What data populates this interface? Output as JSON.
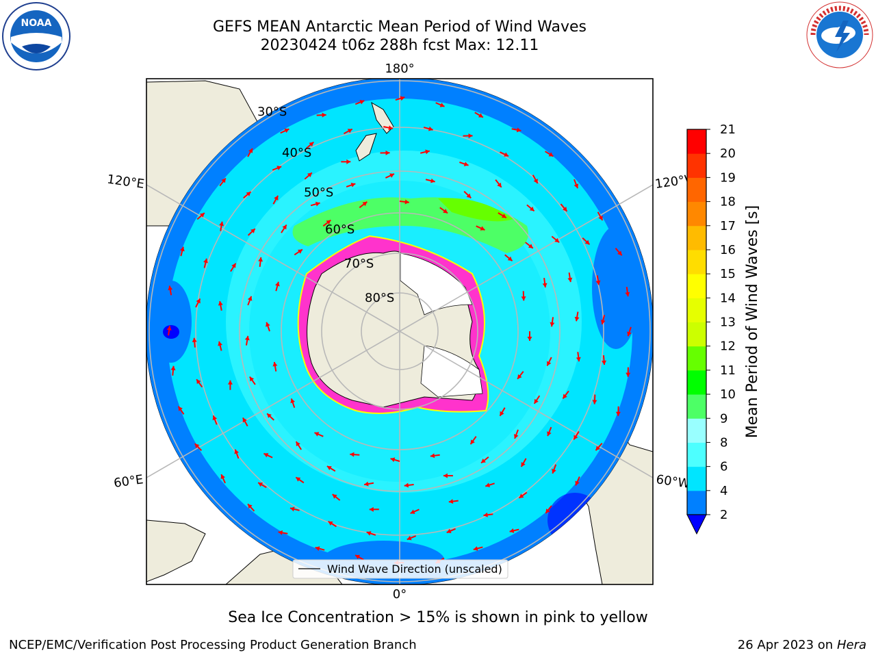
{
  "title": {
    "line1": "GEFS MEAN Antarctic Mean Period of Wind Waves",
    "line2": "20230424 t06z 288h fcst   Max: 12.11"
  },
  "logos": {
    "left": "noaa-logo",
    "right": "nws-logo",
    "left_text": "NOAA",
    "right_text": "NATIONAL WEATHER SERVICE"
  },
  "map": {
    "projection": "south-polar-stereographic",
    "lon_labels": {
      "top": "180°",
      "bottom": "0°",
      "upper_left": "120°E",
      "upper_right": "120°W",
      "lower_left": "60°E",
      "lower_right": "60°W"
    },
    "lat_labels": [
      "30°S",
      "40°S",
      "50°S",
      "60°S",
      "70°S",
      "80°S"
    ],
    "colors": {
      "land": "#eeecdc",
      "ocean_low": "#0080ff",
      "ocean_mid": "#00e5ff",
      "ocean_high": "#4dffff",
      "green": "#00ff00",
      "ice": "#ff33cc",
      "ice_edge": "#ffff00",
      "arrow": "#ff0000",
      "grid": "#b8b8b8"
    },
    "legend_label": "Wind Wave Direction (unscaled)"
  },
  "colorbar": {
    "label": "Mean Period of Wind Waves [s]",
    "ticks": [
      "2",
      "4",
      "6",
      "8",
      "9",
      "10",
      "11",
      "12",
      "13",
      "14",
      "15",
      "16",
      "17",
      "18",
      "19",
      "20",
      "21"
    ],
    "colors": [
      "#0000ff",
      "#0080ff",
      "#00e5ff",
      "#4dffff",
      "#99ffff",
      "#4dff66",
      "#00ff00",
      "#66ff00",
      "#ccff00",
      "#e6ff00",
      "#ffff00",
      "#ffdd00",
      "#ffbb00",
      "#ff8800",
      "#ff6600",
      "#ff3300",
      "#ff0000"
    ]
  },
  "sea_ice_caption": "Sea Ice Concentration > 15% is shown in pink to yellow",
  "footer": {
    "left": "NCEP/EMC/Verification Post Processing Product Generation Branch",
    "right_date": "26 Apr 2023 on ",
    "right_host": "Hera"
  }
}
